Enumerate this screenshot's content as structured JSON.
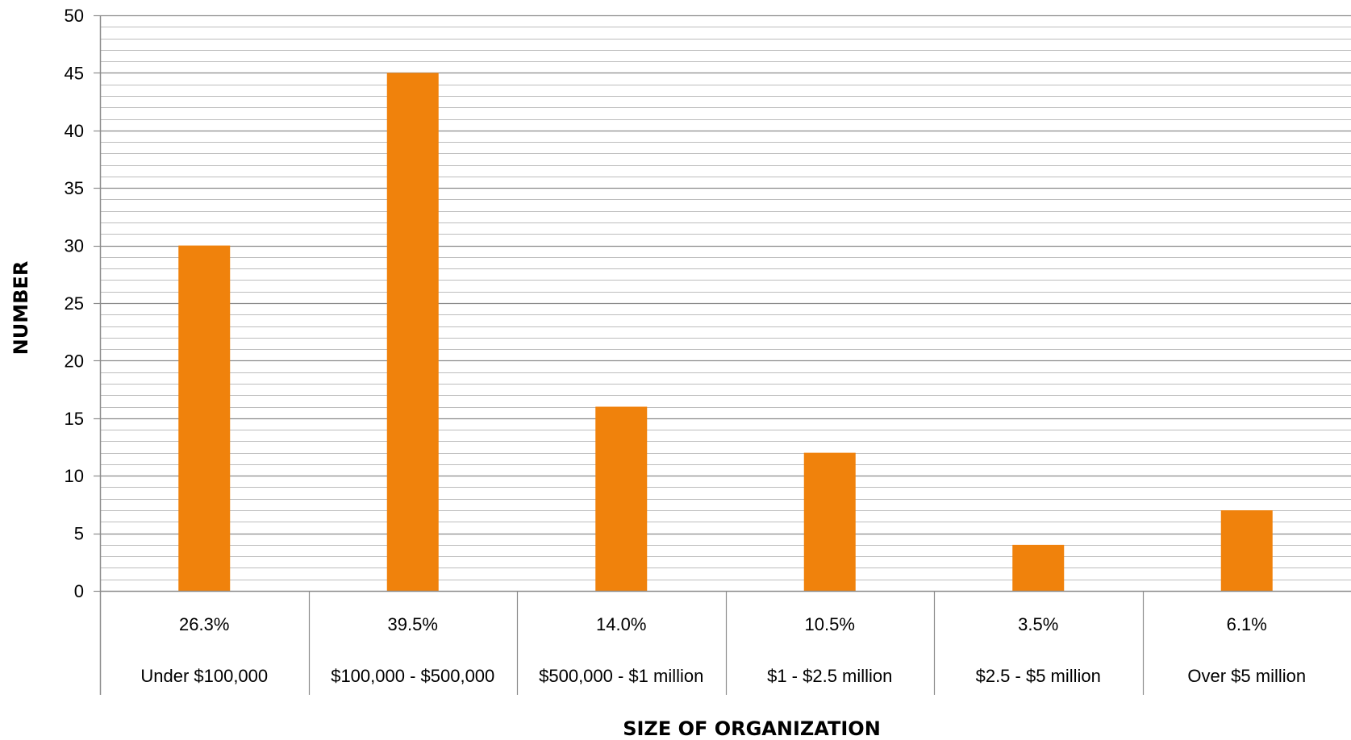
{
  "chart_data": {
    "type": "bar",
    "categories": [
      "Under $100,000",
      "$100,000 - $500,000",
      "$500,000 - $1 million",
      "$1 - $2.5 million",
      "$2.5 - $5 million",
      "Over $5 million"
    ],
    "percent_labels": [
      "26.3%",
      "39.5%",
      "14.0%",
      "10.5%",
      "3.5%",
      "6.1%"
    ],
    "values": [
      30,
      45,
      16,
      12,
      4,
      7
    ],
    "title": "",
    "xlabel": "SIZE OF ORGANIZATION",
    "ylabel": "NUMBER",
    "ylim": [
      0,
      50
    ],
    "y_major_step": 5,
    "y_minor_step": 1,
    "grid": true,
    "legend": "none",
    "colors": {
      "bar": "#F0820C",
      "major_grid": "#8C8C8C",
      "minor_grid": "#BDBDBD",
      "axis": "#8C8C8C"
    }
  }
}
